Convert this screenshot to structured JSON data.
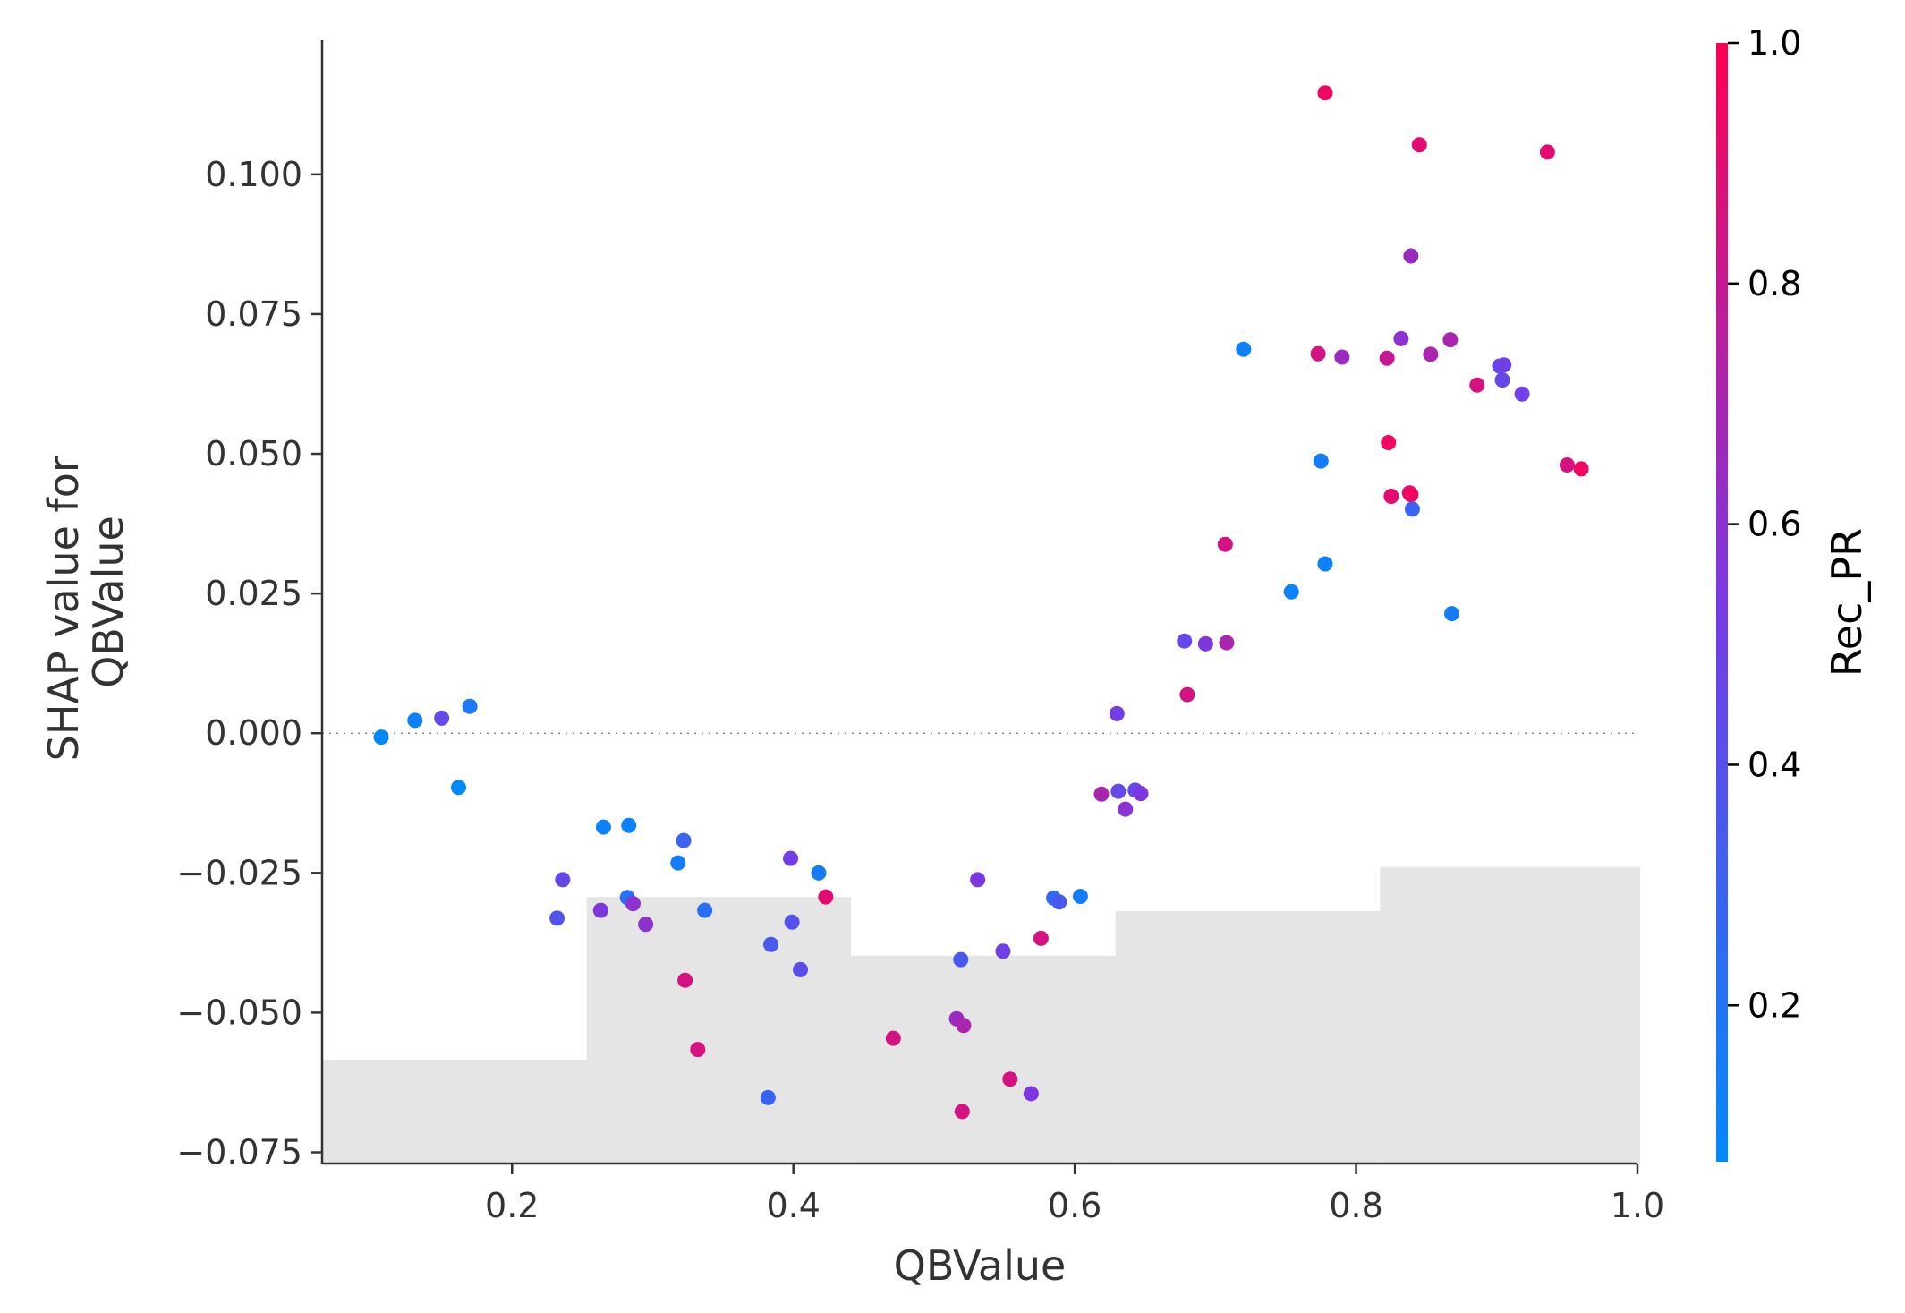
{
  "chart_data": {
    "type": "scatter",
    "xlabel": "QBValue",
    "ylabel": [
      "SHAP value for",
      "QBValue"
    ],
    "xlim": [
      0.065,
      1.0
    ],
    "ylim": [
      -0.077,
      0.124
    ],
    "xticks": [
      0.2,
      0.4,
      0.6,
      0.8,
      1.0
    ],
    "xtick_labels": [
      "0.2",
      "0.4",
      "0.6",
      "0.8",
      "1.0"
    ],
    "yticks": [
      -0.075,
      -0.05,
      -0.025,
      0.0,
      0.025,
      0.05,
      0.075,
      0.1
    ],
    "ytick_labels": [
      "−0.075",
      "−0.050",
      "−0.025",
      "0.000",
      "0.025",
      "0.050",
      "0.075",
      "0.100"
    ],
    "zero_line": true,
    "grid": false,
    "histogram_steps": [
      {
        "x0": 0.065,
        "x1": 0.253,
        "top": -0.0584
      },
      {
        "x0": 0.253,
        "x1": 0.441,
        "top": -0.0293
      },
      {
        "x0": 0.441,
        "x1": 0.629,
        "top": -0.0398
      },
      {
        "x0": 0.629,
        "x1": 0.817,
        "top": -0.0318
      },
      {
        "x0": 0.817,
        "x1": 1.002,
        "top": -0.0239
      }
    ],
    "colorbar": {
      "label": "Rec_PR",
      "range": [
        0.07,
        1.0
      ],
      "ticks": [
        0.2,
        0.4,
        0.6,
        0.8,
        1.0
      ],
      "tick_labels": [
        "0.2",
        "0.4",
        "0.6",
        "0.8",
        "1.0"
      ],
      "low_color": "#008afb",
      "mid_color": "#7a39e4",
      "high_color": "#ff0052"
    },
    "points": [
      {
        "x": 0.107,
        "y": -0.0007,
        "c": 0.08
      },
      {
        "x": 0.131,
        "y": 0.0023,
        "c": 0.12
      },
      {
        "x": 0.15,
        "y": 0.0027,
        "c": 0.45
      },
      {
        "x": 0.162,
        "y": -0.0097,
        "c": 0.08
      },
      {
        "x": 0.17,
        "y": 0.0048,
        "c": 0.18
      },
      {
        "x": 0.232,
        "y": -0.0331,
        "c": 0.38
      },
      {
        "x": 0.236,
        "y": -0.0262,
        "c": 0.45
      },
      {
        "x": 0.263,
        "y": -0.0317,
        "c": 0.55
      },
      {
        "x": 0.265,
        "y": -0.0168,
        "c": 0.12
      },
      {
        "x": 0.282,
        "y": -0.0294,
        "c": 0.22
      },
      {
        "x": 0.283,
        "y": -0.0165,
        "c": 0.12
      },
      {
        "x": 0.286,
        "y": -0.0305,
        "c": 0.6
      },
      {
        "x": 0.295,
        "y": -0.0342,
        "c": 0.6
      },
      {
        "x": 0.318,
        "y": -0.0232,
        "c": 0.15
      },
      {
        "x": 0.322,
        "y": -0.0192,
        "c": 0.3
      },
      {
        "x": 0.323,
        "y": -0.0442,
        "c": 0.85
      },
      {
        "x": 0.332,
        "y": -0.0566,
        "c": 0.85
      },
      {
        "x": 0.337,
        "y": -0.0317,
        "c": 0.22
      },
      {
        "x": 0.382,
        "y": -0.0652,
        "c": 0.28
      },
      {
        "x": 0.384,
        "y": -0.0378,
        "c": 0.35
      },
      {
        "x": 0.398,
        "y": -0.0224,
        "c": 0.5
      },
      {
        "x": 0.399,
        "y": -0.0338,
        "c": 0.4
      },
      {
        "x": 0.405,
        "y": -0.0423,
        "c": 0.42
      },
      {
        "x": 0.418,
        "y": -0.025,
        "c": 0.15
      },
      {
        "x": 0.423,
        "y": -0.0293,
        "c": 0.9
      },
      {
        "x": 0.471,
        "y": -0.0546,
        "c": 0.85
      },
      {
        "x": 0.516,
        "y": -0.0511,
        "c": 0.65
      },
      {
        "x": 0.519,
        "y": -0.0405,
        "c": 0.35
      },
      {
        "x": 0.52,
        "y": -0.0677,
        "c": 0.85
      },
      {
        "x": 0.521,
        "y": -0.0523,
        "c": 0.7
      },
      {
        "x": 0.531,
        "y": -0.0262,
        "c": 0.55
      },
      {
        "x": 0.549,
        "y": -0.039,
        "c": 0.5
      },
      {
        "x": 0.554,
        "y": -0.0619,
        "c": 0.85
      },
      {
        "x": 0.569,
        "y": -0.0645,
        "c": 0.55
      },
      {
        "x": 0.576,
        "y": -0.0367,
        "c": 0.85
      },
      {
        "x": 0.585,
        "y": -0.0295,
        "c": 0.25
      },
      {
        "x": 0.589,
        "y": -0.0302,
        "c": 0.35
      },
      {
        "x": 0.604,
        "y": -0.0292,
        "c": 0.15
      },
      {
        "x": 0.619,
        "y": -0.0109,
        "c": 0.7
      },
      {
        "x": 0.63,
        "y": 0.0035,
        "c": 0.5
      },
      {
        "x": 0.631,
        "y": -0.0104,
        "c": 0.45
      },
      {
        "x": 0.636,
        "y": -0.0136,
        "c": 0.6
      },
      {
        "x": 0.643,
        "y": -0.0102,
        "c": 0.45
      },
      {
        "x": 0.647,
        "y": -0.0108,
        "c": 0.55
      },
      {
        "x": 0.678,
        "y": 0.0165,
        "c": 0.45
      },
      {
        "x": 0.68,
        "y": 0.0069,
        "c": 0.85
      },
      {
        "x": 0.693,
        "y": 0.016,
        "c": 0.55
      },
      {
        "x": 0.707,
        "y": 0.0338,
        "c": 0.85
      },
      {
        "x": 0.708,
        "y": 0.0162,
        "c": 0.7
      },
      {
        "x": 0.72,
        "y": 0.0687,
        "c": 0.12
      },
      {
        "x": 0.754,
        "y": 0.0253,
        "c": 0.12
      },
      {
        "x": 0.773,
        "y": 0.0679,
        "c": 0.85
      },
      {
        "x": 0.775,
        "y": 0.0487,
        "c": 0.15
      },
      {
        "x": 0.778,
        "y": 0.1146,
        "c": 0.95
      },
      {
        "x": 0.778,
        "y": 0.0303,
        "c": 0.12
      },
      {
        "x": 0.79,
        "y": 0.0673,
        "c": 0.65
      },
      {
        "x": 0.822,
        "y": 0.0671,
        "c": 0.8
      },
      {
        "x": 0.823,
        "y": 0.052,
        "c": 0.95
      },
      {
        "x": 0.825,
        "y": 0.0424,
        "c": 0.9
      },
      {
        "x": 0.832,
        "y": 0.0706,
        "c": 0.6
      },
      {
        "x": 0.838,
        "y": 0.043,
        "c": 0.9
      },
      {
        "x": 0.839,
        "y": 0.0427,
        "c": 0.95
      },
      {
        "x": 0.839,
        "y": 0.0854,
        "c": 0.65
      },
      {
        "x": 0.84,
        "y": 0.0401,
        "c": 0.28
      },
      {
        "x": 0.845,
        "y": 0.1053,
        "c": 0.9
      },
      {
        "x": 0.853,
        "y": 0.0678,
        "c": 0.7
      },
      {
        "x": 0.867,
        "y": 0.0704,
        "c": 0.7
      },
      {
        "x": 0.868,
        "y": 0.0214,
        "c": 0.15
      },
      {
        "x": 0.886,
        "y": 0.0623,
        "c": 0.85
      },
      {
        "x": 0.902,
        "y": 0.0657,
        "c": 0.45
      },
      {
        "x": 0.904,
        "y": 0.0632,
        "c": 0.45
      },
      {
        "x": 0.905,
        "y": 0.0659,
        "c": 0.5
      },
      {
        "x": 0.918,
        "y": 0.0607,
        "c": 0.5
      },
      {
        "x": 0.936,
        "y": 0.104,
        "c": 0.9
      },
      {
        "x": 0.95,
        "y": 0.048,
        "c": 0.85
      },
      {
        "x": 0.96,
        "y": 0.0473,
        "c": 0.95
      }
    ]
  }
}
